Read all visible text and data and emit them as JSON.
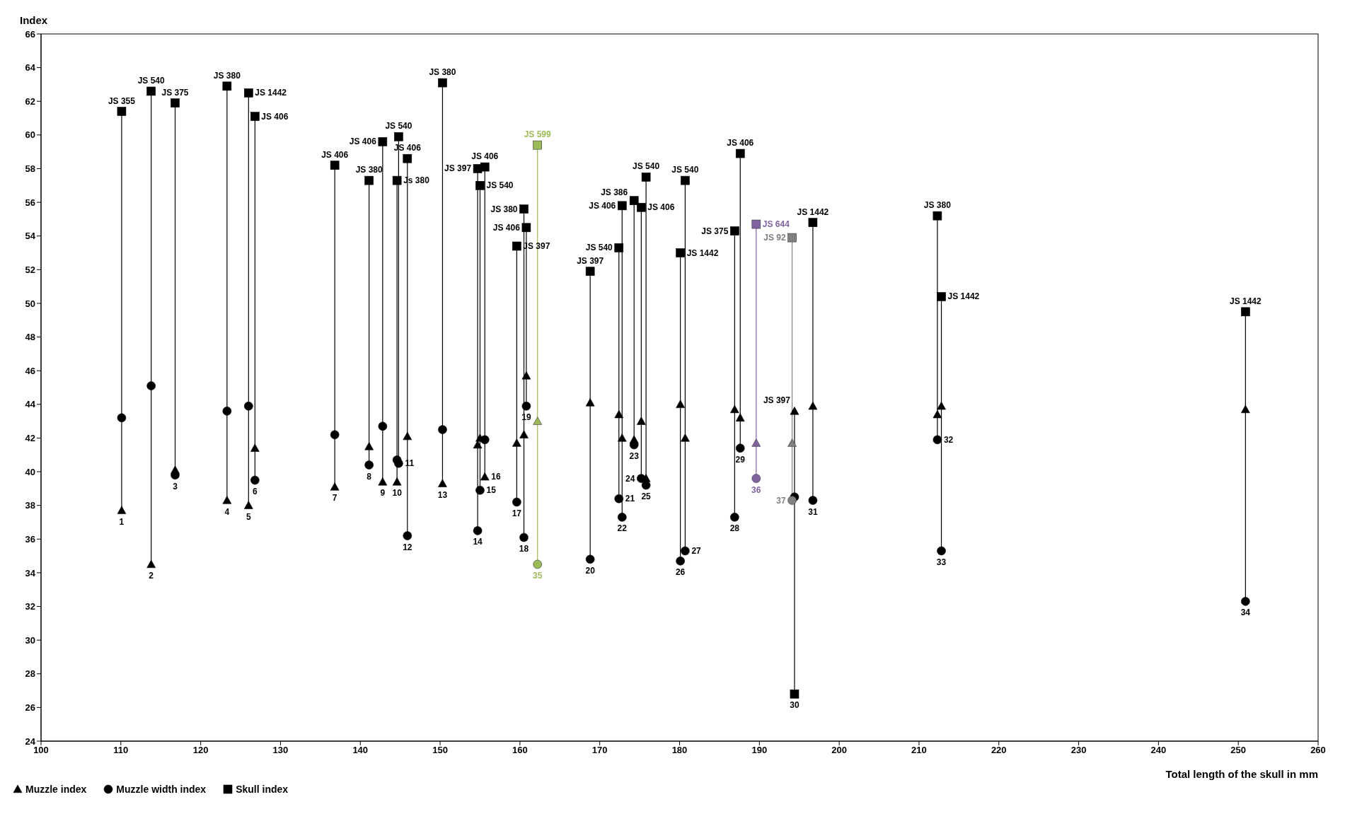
{
  "chart_data": {
    "type": "scatter",
    "ylabel": "Index",
    "xlabel": "Total length of the skull in mm",
    "x": [
      110.1,
      113.8,
      116.8,
      123.3,
      126.0,
      126.8,
      136.8,
      141.1,
      142.8,
      144.6,
      144.8,
      145.9,
      150.3,
      154.7,
      155.0,
      155.6,
      159.6,
      160.5,
      160.8,
      168.8,
      172.4,
      172.8,
      174.3,
      175.2,
      175.8,
      180.1,
      180.7,
      186.9,
      187.6,
      194.4,
      196.7,
      212.3,
      212.8,
      250.9,
      162.2,
      189.6,
      194.1
    ],
    "series": [
      {
        "name": "Muzzle index",
        "marker": "triangle",
        "values": [
          37.7,
          34.5,
          40.1,
          38.3,
          38.0,
          41.4,
          39.1,
          41.5,
          39.4,
          39.4,
          null,
          42.1,
          39.3,
          41.6,
          42.0,
          39.7,
          41.7,
          42.2,
          45.7,
          44.1,
          43.4,
          42.0,
          41.9,
          43.0,
          39.6,
          44.0,
          42.0,
          43.7,
          43.2,
          43.6,
          43.9,
          43.4,
          43.9,
          43.7,
          43.0,
          41.7,
          41.7
        ],
        "colors": [
          "#000000",
          "#000000",
          "#000000",
          "#000000",
          "#000000",
          "#000000",
          "#000000",
          "#000000",
          "#000000",
          "#000000",
          null,
          "#000000",
          "#000000",
          "#000000",
          "#000000",
          "#000000",
          "#000000",
          "#000000",
          "#000000",
          "#000000",
          "#000000",
          "#000000",
          "#000000",
          "#000000",
          "#000000",
          "#000000",
          "#000000",
          "#000000",
          "#000000",
          "#000000",
          "#000000",
          "#000000",
          "#000000",
          "#000000",
          "#9bbb59",
          "#8064a2",
          "#808080"
        ]
      },
      {
        "name": "Muzzle width index",
        "marker": "circle",
        "values": [
          43.2,
          45.1,
          39.8,
          43.6,
          43.9,
          39.5,
          42.2,
          40.4,
          42.7,
          40.7,
          40.5,
          36.2,
          42.5,
          36.5,
          38.9,
          41.9,
          38.2,
          36.1,
          43.9,
          34.8,
          38.4,
          37.3,
          41.6,
          39.6,
          39.2,
          34.7,
          35.3,
          37.3,
          41.4,
          38.5,
          38.3,
          41.9,
          35.3,
          32.3,
          34.5,
          39.6,
          38.3
        ],
        "colors": [
          "#000000",
          "#000000",
          "#000000",
          "#000000",
          "#000000",
          "#000000",
          "#000000",
          "#000000",
          "#000000",
          "#000000",
          "#000000",
          "#000000",
          "#000000",
          "#000000",
          "#000000",
          "#000000",
          "#000000",
          "#000000",
          "#000000",
          "#000000",
          "#000000",
          "#000000",
          "#000000",
          "#000000",
          "#000000",
          "#000000",
          "#000000",
          "#000000",
          "#000000",
          "#000000",
          "#000000",
          "#000000",
          "#000000",
          "#000000",
          "#9bbb59",
          "#8064a2",
          "#808080"
        ]
      },
      {
        "name": "Skull index",
        "marker": "square",
        "values": [
          61.4,
          62.6,
          61.9,
          62.9,
          62.5,
          61.1,
          58.2,
          57.3,
          59.6,
          57.3,
          59.9,
          58.6,
          63.1,
          58.0,
          57.0,
          58.1,
          53.4,
          55.6,
          54.5,
          51.9,
          53.3,
          55.8,
          56.1,
          55.7,
          57.5,
          53.0,
          57.3,
          54.3,
          58.9,
          26.8,
          54.8,
          55.2,
          50.4,
          49.5,
          59.4,
          54.7,
          53.9
        ],
        "colors": [
          "#000000",
          "#000000",
          "#000000",
          "#000000",
          "#000000",
          "#000000",
          "#000000",
          "#000000",
          "#000000",
          "#000000",
          "#000000",
          "#000000",
          "#000000",
          "#000000",
          "#000000",
          "#000000",
          "#000000",
          "#000000",
          "#000000",
          "#000000",
          "#000000",
          "#000000",
          "#000000",
          "#000000",
          "#000000",
          "#000000",
          "#000000",
          "#000000",
          "#000000",
          "#000000",
          "#000000",
          "#000000",
          "#000000",
          "#000000",
          "#9bbb59",
          "#8064a2",
          "#808080"
        ]
      }
    ],
    "xlim": [
      100,
      260
    ],
    "xticks": [
      100,
      110,
      120,
      130,
      140,
      150,
      160,
      170,
      180,
      190,
      200,
      210,
      220,
      230,
      240,
      250,
      260
    ],
    "ylim": [
      24,
      66
    ],
    "yticks": [
      24,
      26,
      28,
      30,
      32,
      34,
      36,
      38,
      40,
      42,
      44,
      46,
      48,
      50,
      52,
      54,
      56,
      58,
      60,
      62,
      64,
      66
    ],
    "legend": "bottom left",
    "annotations": [
      {
        "text": "JS 355",
        "x": 110.1,
        "y": 61.4
      },
      {
        "text": "1",
        "x": 110.1,
        "y": 37.7
      },
      {
        "text": "JS 540",
        "x": 113.8,
        "y": 62.6
      },
      {
        "text": "2",
        "x": 113.8,
        "y": 34.5
      },
      {
        "text": "JS 375",
        "x": 116.8,
        "y": 61.9
      },
      {
        "text": "3",
        "x": 116.8,
        "y": 39.8
      },
      {
        "text": "JS 380",
        "x": 123.3,
        "y": 62.9
      },
      {
        "text": "4",
        "x": 123.3,
        "y": 38.3
      },
      {
        "text": "JS 1442",
        "x": 126.0,
        "y": 62.5
      },
      {
        "text": "5",
        "x": 126.0,
        "y": 38.0
      },
      {
        "text": "JS 406",
        "x": 126.8,
        "y": 61.1
      },
      {
        "text": "6",
        "x": 126.8,
        "y": 39.5
      },
      {
        "text": "JS 406",
        "x": 136.8,
        "y": 58.2
      },
      {
        "text": "7",
        "x": 136.8,
        "y": 39.1
      },
      {
        "text": "JS 380",
        "x": 141.1,
        "y": 57.3
      },
      {
        "text": "8",
        "x": 141.1,
        "y": 40.4
      },
      {
        "text": "JS 406",
        "x": 142.8,
        "y": 59.6
      },
      {
        "text": "9",
        "x": 142.8,
        "y": 39.4
      },
      {
        "text": "Js 380",
        "x": 144.6,
        "y": 57.3
      },
      {
        "text": "10",
        "x": 144.6,
        "y": 39.4
      },
      {
        "text": "JS 540",
        "x": 144.8,
        "y": 59.9
      },
      {
        "text": "11",
        "x": 144.8,
        "y": 40.5
      },
      {
        "text": "JS 406",
        "x": 145.9,
        "y": 58.6
      },
      {
        "text": "12",
        "x": 145.9,
        "y": 36.2
      },
      {
        "text": "JS 380",
        "x": 150.3,
        "y": 63.1
      },
      {
        "text": "13",
        "x": 150.3,
        "y": 39.3
      },
      {
        "text": "JS 397",
        "x": 154.7,
        "y": 58.0
      },
      {
        "text": "14",
        "x": 154.7,
        "y": 36.5
      },
      {
        "text": "JS 540",
        "x": 155.0,
        "y": 57.0
      },
      {
        "text": "15",
        "x": 155.0,
        "y": 38.9
      },
      {
        "text": "JS 406",
        "x": 155.6,
        "y": 58.1
      },
      {
        "text": "16",
        "x": 155.6,
        "y": 39.7
      },
      {
        "text": "JS 397",
        "x": 159.6,
        "y": 53.4
      },
      {
        "text": "17",
        "x": 159.6,
        "y": 38.2
      },
      {
        "text": "JS 380",
        "x": 160.5,
        "y": 55.6
      },
      {
        "text": "18",
        "x": 160.5,
        "y": 36.1
      },
      {
        "text": "JS 406",
        "x": 160.8,
        "y": 54.5
      },
      {
        "text": "19",
        "x": 160.8,
        "y": 43.9
      },
      {
        "text": "JS 397",
        "x": 168.8,
        "y": 51.9
      },
      {
        "text": "20",
        "x": 168.8,
        "y": 34.8
      },
      {
        "text": "JS 540",
        "x": 172.4,
        "y": 53.3
      },
      {
        "text": "21",
        "x": 172.4,
        "y": 38.4
      },
      {
        "text": "JS 406",
        "x": 172.8,
        "y": 55.8
      },
      {
        "text": "22",
        "x": 172.8,
        "y": 37.3
      },
      {
        "text": "JS 386",
        "x": 174.3,
        "y": 56.1
      },
      {
        "text": "23",
        "x": 174.3,
        "y": 41.6
      },
      {
        "text": "JS 406",
        "x": 175.2,
        "y": 55.7
      },
      {
        "text": "24",
        "x": 175.2,
        "y": 39.6
      },
      {
        "text": "JS 540",
        "x": 175.8,
        "y": 57.5
      },
      {
        "text": "25",
        "x": 175.8,
        "y": 39.2
      },
      {
        "text": "JS 1442",
        "x": 180.1,
        "y": 53.0
      },
      {
        "text": "26",
        "x": 180.1,
        "y": 34.7
      },
      {
        "text": "JS 540",
        "x": 180.7,
        "y": 57.3
      },
      {
        "text": "27",
        "x": 180.7,
        "y": 35.3
      },
      {
        "text": "JS 375",
        "x": 186.9,
        "y": 54.3
      },
      {
        "text": "28",
        "x": 186.9,
        "y": 37.3
      },
      {
        "text": "JS 406",
        "x": 187.6,
        "y": 58.9
      },
      {
        "text": "29",
        "x": 187.6,
        "y": 41.4
      },
      {
        "text": "JS 397",
        "x": 194.4,
        "y": 43.6
      },
      {
        "text": "30",
        "x": 194.4,
        "y": 26.8
      },
      {
        "text": "JS 1442",
        "x": 196.7,
        "y": 54.8
      },
      {
        "text": "31",
        "x": 196.7,
        "y": 38.3
      },
      {
        "text": "JS 380",
        "x": 212.3,
        "y": 55.2
      },
      {
        "text": "32",
        "x": 212.3,
        "y": 41.9
      },
      {
        "text": "JS 1442",
        "x": 212.8,
        "y": 50.4
      },
      {
        "text": "33",
        "x": 212.8,
        "y": 35.3
      },
      {
        "text": "JS 1442",
        "x": 250.9,
        "y": 49.5
      },
      {
        "text": "34",
        "x": 250.9,
        "y": 32.3
      },
      {
        "text": "JS 599",
        "x": 162.2,
        "y": 59.4
      },
      {
        "text": "35",
        "x": 162.2,
        "y": 34.5
      },
      {
        "text": "JS 644",
        "x": 189.6,
        "y": 54.7
      },
      {
        "text": "36",
        "x": 189.6,
        "y": 39.6
      },
      {
        "text": "JS 92",
        "x": 194.1,
        "y": 53.9
      },
      {
        "text": "37",
        "x": 194.1,
        "y": 38.3
      }
    ]
  }
}
